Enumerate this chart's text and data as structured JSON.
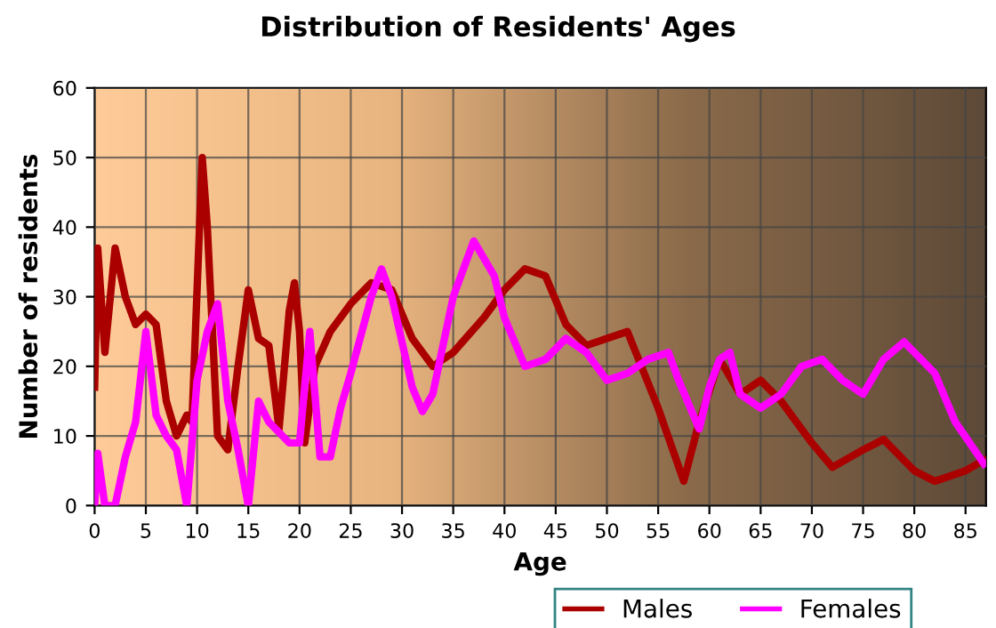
{
  "chart_data": {
    "type": "line",
    "title": "Distribution of Residents' Ages",
    "xlabel": "Age",
    "ylabel": "Number of residents",
    "xlim": [
      0,
      87
    ],
    "ylim": [
      0,
      60
    ],
    "xticks": [
      0,
      5,
      10,
      15,
      20,
      25,
      30,
      35,
      40,
      45,
      50,
      55,
      60,
      65,
      70,
      75,
      80,
      85
    ],
    "yticks": [
      0,
      10,
      20,
      30,
      40,
      50,
      60
    ],
    "grid": true,
    "legend": "bottom",
    "series": [
      {
        "name": "Males",
        "color": "#aa0000",
        "x": [
          0,
          0.3,
          1,
          2,
          3,
          4,
          5,
          6,
          7,
          8,
          9,
          9.5,
          10.5,
          11,
          12,
          13,
          14,
          15,
          16,
          17,
          18,
          19,
          19.5,
          20,
          20.5,
          21.5,
          23,
          25,
          27,
          29,
          31,
          33,
          35,
          38,
          40,
          42,
          44,
          46,
          48,
          50,
          52,
          55,
          57.5,
          59,
          61,
          63,
          65,
          67,
          70,
          72,
          75,
          77,
          80,
          82,
          85,
          86.8
        ],
        "values": [
          17,
          37,
          22,
          37,
          30,
          26,
          27.5,
          26,
          15,
          10,
          13,
          12,
          50,
          40,
          10,
          8,
          20,
          31,
          24,
          23,
          11,
          28,
          32,
          25,
          9,
          20,
          25,
          29,
          32,
          31,
          24,
          20,
          22,
          27,
          31,
          34,
          33,
          26,
          23,
          24,
          25,
          14,
          3.5,
          12,
          21,
          16,
          18,
          15,
          9,
          5.5,
          8,
          9.5,
          5,
          3.5,
          5,
          6.5
        ]
      },
      {
        "name": "Females",
        "color": "#ff00ff",
        "x": [
          0,
          0.3,
          1,
          2,
          3,
          4,
          5,
          6,
          7,
          8,
          9,
          10,
          11,
          12,
          13,
          14,
          15,
          16,
          17,
          18,
          19,
          20,
          21,
          22,
          23,
          24,
          25,
          27,
          28,
          29,
          31,
          32,
          33,
          35,
          37,
          39,
          40,
          42,
          44,
          46,
          48,
          50,
          52,
          54,
          56,
          57,
          59,
          60,
          61,
          62,
          63,
          65,
          67,
          69,
          71,
          73,
          75,
          77,
          79,
          82,
          84,
          86.8
        ],
        "values": [
          0,
          7.5,
          0,
          0,
          7,
          12,
          25,
          13,
          10,
          8,
          0,
          18,
          25,
          29,
          15,
          8,
          0,
          15,
          12,
          10.5,
          9,
          9,
          25,
          7,
          7,
          14,
          19,
          30,
          34,
          30,
          17,
          13.5,
          16,
          30,
          38,
          33,
          27,
          20,
          21,
          24,
          22,
          18,
          19,
          21,
          22,
          18,
          11,
          17,
          21,
          22,
          16,
          14,
          16,
          20,
          21,
          18,
          16,
          21,
          23.5,
          19,
          12,
          6
        ]
      }
    ]
  }
}
